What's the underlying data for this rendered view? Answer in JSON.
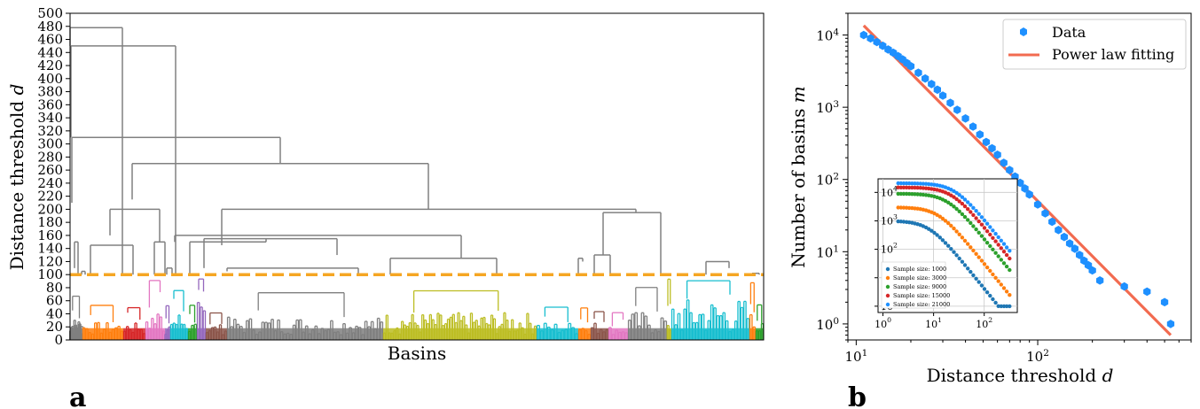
{
  "chart_data": [
    {
      "type": "dendrogram",
      "panel_label": "a",
      "xlabel": "Basins",
      "ylabel": "Distance threshold d",
      "ylim": [
        0,
        500
      ],
      "yticks": [
        0,
        20,
        40,
        60,
        80,
        100,
        120,
        140,
        160,
        180,
        200,
        220,
        240,
        260,
        280,
        300,
        320,
        340,
        360,
        380,
        400,
        420,
        440,
        460,
        480,
        500
      ],
      "threshold": 100,
      "threshold_color": "#f5a623",
      "cluster_colors": [
        "#1f77b4",
        "#ff7f0e",
        "#2ca02c",
        "#d62728",
        "#9467bd",
        "#8c564b",
        "#e377c2",
        "#7f7f7f",
        "#bcbd22",
        "#17becf"
      ],
      "link_color": "#808080"
    },
    {
      "type": "scatter",
      "panel_label": "b",
      "xlabel": "Distance threshold d",
      "ylabel": "Number of basins m",
      "xscale": "log",
      "yscale": "log",
      "xlim": [
        9,
        700
      ],
      "ylim": [
        0.6,
        20000
      ],
      "xticks": [
        10,
        100
      ],
      "xtick_labels": [
        "10^1",
        "10^2"
      ],
      "yticks": [
        1,
        10,
        100,
        1000,
        10000
      ],
      "ytick_labels": [
        "10^0",
        "10^1",
        "10^2",
        "10^3",
        "10^4"
      ],
      "legend_placement": "top-right",
      "series": [
        {
          "name": "Data",
          "color": "#1e90ff",
          "x": [
            11,
            12,
            13,
            14,
            15,
            16,
            17,
            18,
            19,
            20,
            22,
            24,
            26,
            28,
            30,
            33,
            36,
            40,
            44,
            48,
            52,
            56,
            60,
            65,
            70,
            75,
            80,
            85,
            90,
            100,
            110,
            120,
            130,
            140,
            150,
            160,
            170,
            180,
            190,
            200,
            220,
            300,
            400,
            500,
            540
          ],
          "y": [
            10000,
            9000,
            8000,
            7100,
            6300,
            5700,
            5100,
            4600,
            4100,
            3700,
            3000,
            2500,
            2100,
            1750,
            1450,
            1150,
            920,
            700,
            540,
            420,
            330,
            270,
            220,
            170,
            135,
            110,
            90,
            75,
            62,
            45,
            34,
            26,
            20,
            16,
            13,
            11,
            9,
            7.5,
            6.5,
            5.5,
            4,
            3.3,
            2.8,
            2,
            1
          ]
        },
        {
          "name": "Power law fitting",
          "color": "#f26b50",
          "x": [
            11,
            540
          ],
          "y": [
            13500,
            0.7
          ]
        }
      ],
      "inset": {
        "xscale": "log",
        "yscale": "log",
        "xlim": [
          0.8,
          450
        ],
        "ylim": [
          0.6,
          30000
        ],
        "xtick_labels": [
          "10^0",
          "10^1",
          "10^2"
        ],
        "ytick_labels": [
          "10^0",
          "10^1",
          "10^2",
          "10^3",
          "10^4"
        ],
        "series": [
          {
            "name": "Sample size: 1000",
            "color": "#1f77b4",
            "plateau": 1000
          },
          {
            "name": "Sample size: 3000",
            "color": "#ff7f0e",
            "plateau": 3000
          },
          {
            "name": "Sample size: 9000",
            "color": "#2ca02c",
            "plateau": 9000
          },
          {
            "name": "Sample size: 15000",
            "color": "#d62728",
            "plateau": 15000
          },
          {
            "name": "Sample size: 21000",
            "color": "#1e90ff",
            "plateau": 21000
          }
        ]
      }
    }
  ]
}
